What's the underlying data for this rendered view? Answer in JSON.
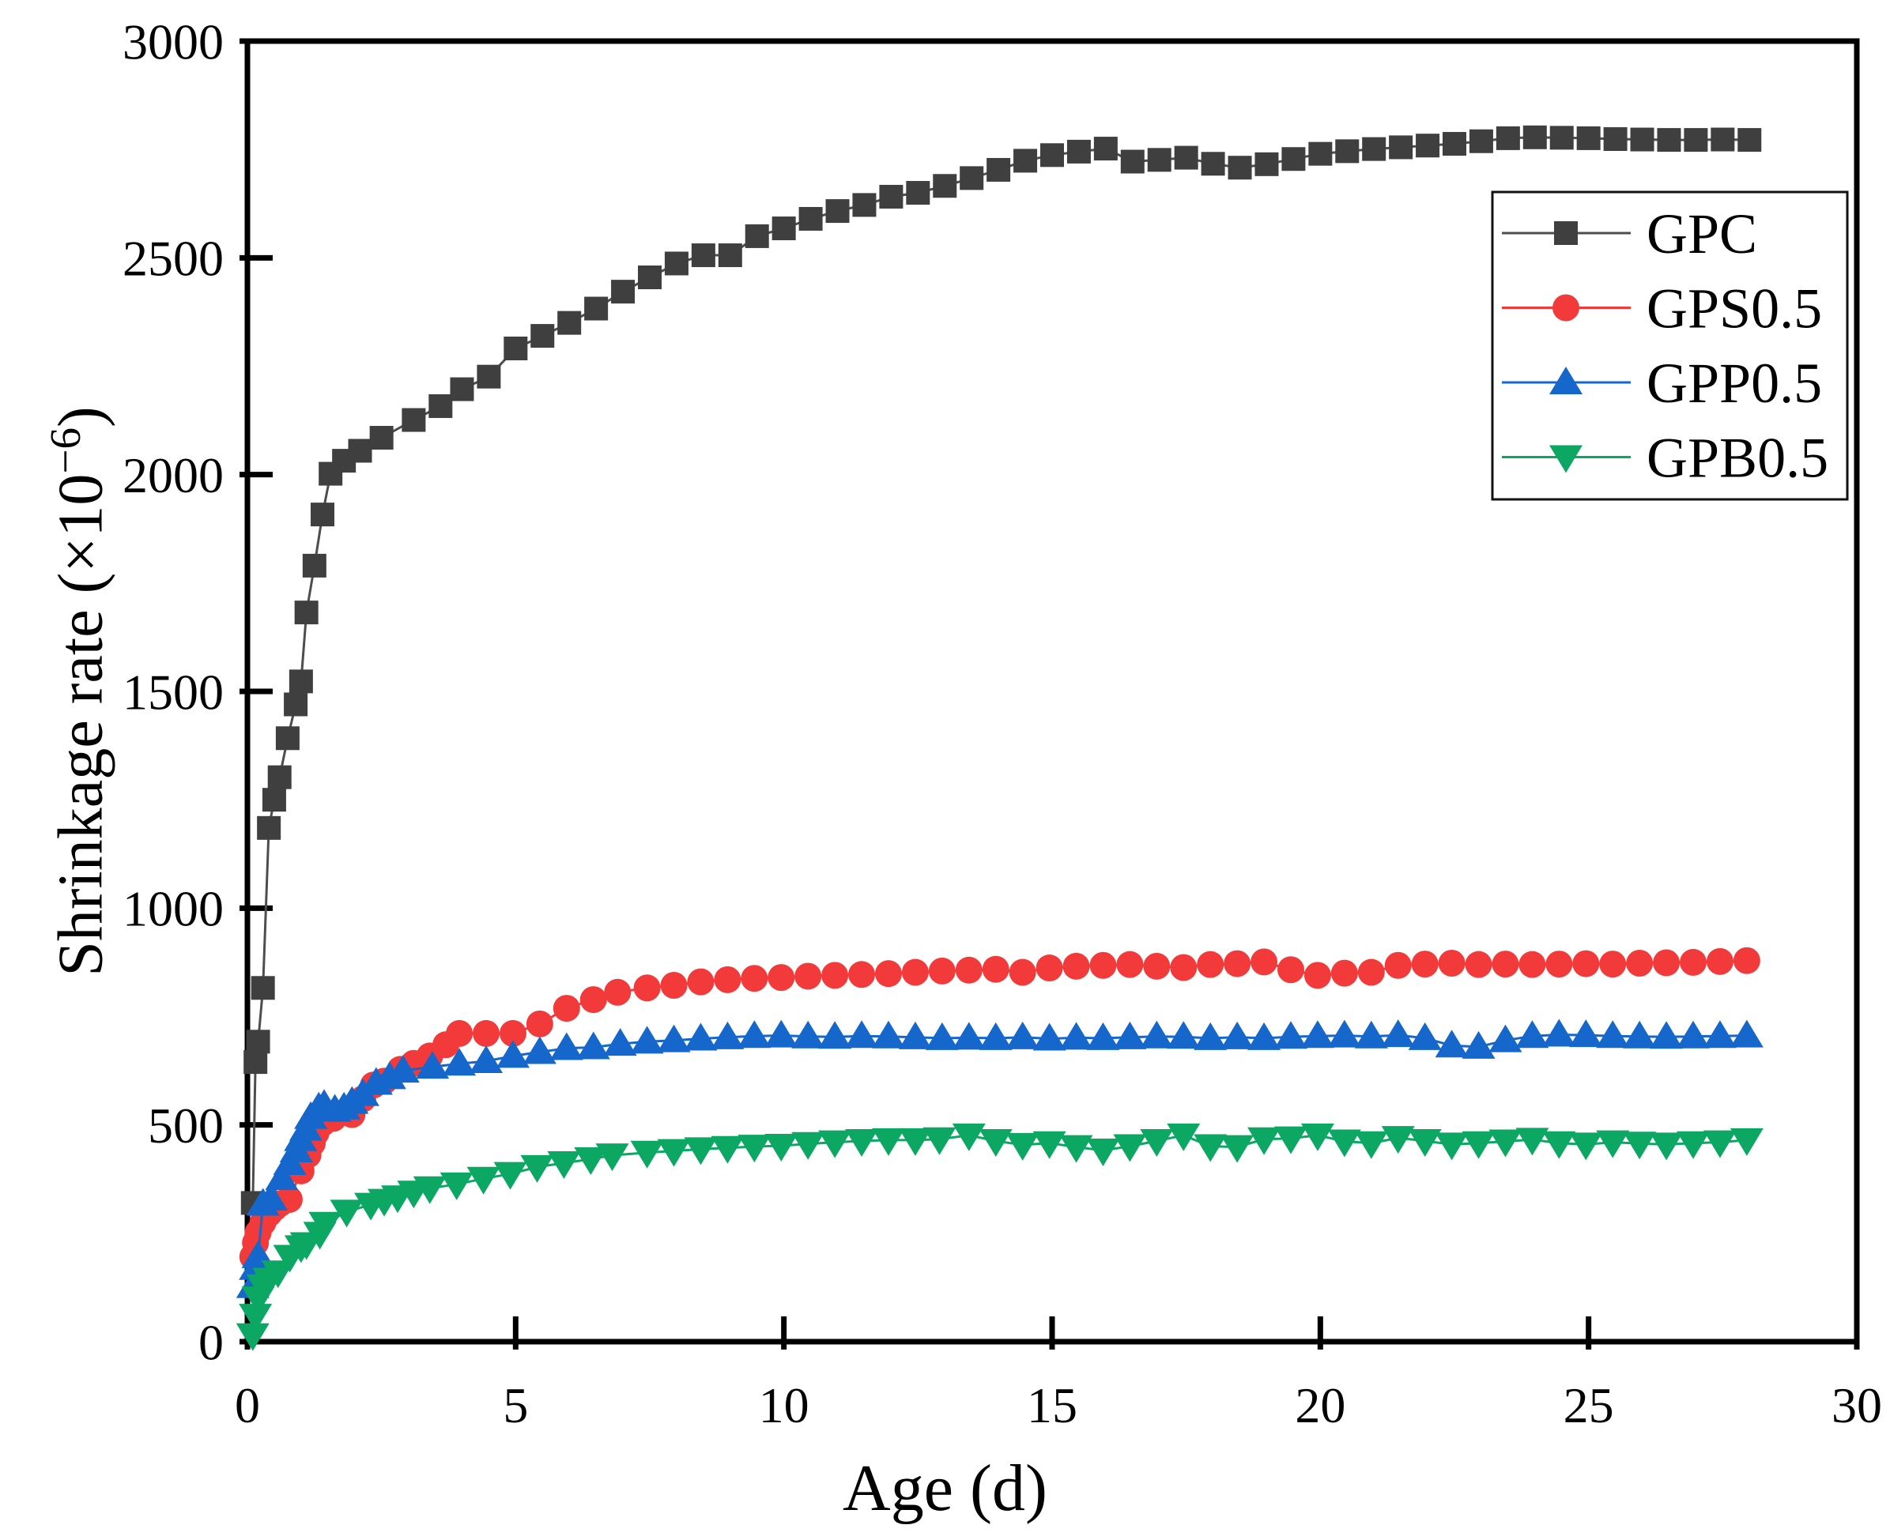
{
  "chart_data": {
    "type": "line",
    "title": "",
    "xlabel": "Age (d)",
    "ylabel_prefix": "Shrinkage rate (×10",
    "ylabel_sup": "−6",
    "ylabel_suffix": ")",
    "xlim": [
      0,
      30
    ],
    "ylim": [
      0,
      3000
    ],
    "xticks": [
      0,
      5,
      10,
      15,
      20,
      25,
      30
    ],
    "yticks": [
      0,
      500,
      1000,
      1500,
      2000,
      2500,
      3000
    ],
    "grid": false,
    "legend_position": "upper right",
    "series": [
      {
        "name": "GPC",
        "marker": "square",
        "color": "#3f3f3f",
        "line_color": "#4d4d4d",
        "points": [
          [
            0.1,
            320
          ],
          [
            0.15,
            645
          ],
          [
            0.2,
            692
          ],
          [
            0.29,
            816
          ],
          [
            0.4,
            1185
          ],
          [
            0.5,
            1250
          ],
          [
            0.6,
            1302
          ],
          [
            0.75,
            1392
          ],
          [
            0.9,
            1470
          ],
          [
            1.0,
            1523
          ],
          [
            1.1,
            1682
          ],
          [
            1.25,
            1790
          ],
          [
            1.4,
            1908
          ],
          [
            1.55,
            2002
          ],
          [
            1.8,
            2032
          ],
          [
            2.1,
            2055
          ],
          [
            2.5,
            2085
          ],
          [
            3.1,
            2126
          ],
          [
            3.6,
            2158
          ],
          [
            4.0,
            2197
          ],
          [
            4.5,
            2226
          ],
          [
            5.0,
            2291
          ],
          [
            5.5,
            2320
          ],
          [
            6.0,
            2350
          ],
          [
            6.5,
            2383
          ],
          [
            7.0,
            2422
          ],
          [
            7.5,
            2455
          ],
          [
            8.0,
            2487
          ],
          [
            8.5,
            2506
          ],
          [
            9.0,
            2506
          ],
          [
            9.5,
            2550
          ],
          [
            10.0,
            2568
          ],
          [
            10.5,
            2590
          ],
          [
            11.0,
            2608
          ],
          [
            11.5,
            2622
          ],
          [
            12.0,
            2641
          ],
          [
            12.5,
            2650
          ],
          [
            13.0,
            2666
          ],
          [
            13.5,
            2684
          ],
          [
            14.0,
            2703
          ],
          [
            14.5,
            2724
          ],
          [
            15.0,
            2737
          ],
          [
            15.5,
            2745
          ],
          [
            16.0,
            2752
          ],
          [
            16.5,
            2722
          ],
          [
            17.0,
            2726
          ],
          [
            17.5,
            2731
          ],
          [
            18.0,
            2717
          ],
          [
            18.5,
            2708
          ],
          [
            19.0,
            2716
          ],
          [
            19.5,
            2728
          ],
          [
            20.0,
            2740
          ],
          [
            20.5,
            2746
          ],
          [
            21.0,
            2751
          ],
          [
            21.5,
            2755
          ],
          [
            22.0,
            2759
          ],
          [
            22.5,
            2763
          ],
          [
            23.0,
            2769
          ],
          [
            23.5,
            2776
          ],
          [
            24.0,
            2778
          ],
          [
            24.5,
            2777
          ],
          [
            25.0,
            2776
          ],
          [
            25.5,
            2774
          ],
          [
            26.0,
            2773
          ],
          [
            26.5,
            2772
          ],
          [
            27.0,
            2772
          ],
          [
            27.5,
            2773
          ],
          [
            28.0,
            2772
          ]
        ]
      },
      {
        "name": "GPS0.5",
        "marker": "circle",
        "color": "#f23a3a",
        "line_color": "#f23a3a",
        "points": [
          [
            0.1,
            196
          ],
          [
            0.15,
            228
          ],
          [
            0.2,
            252
          ],
          [
            0.29,
            275
          ],
          [
            0.4,
            295
          ],
          [
            0.5,
            308
          ],
          [
            0.6,
            318
          ],
          [
            0.78,
            328
          ],
          [
            1.0,
            394
          ],
          [
            1.13,
            431
          ],
          [
            1.21,
            458
          ],
          [
            1.28,
            482
          ],
          [
            1.4,
            504
          ],
          [
            1.6,
            515
          ],
          [
            1.95,
            524
          ],
          [
            2.15,
            560
          ],
          [
            2.35,
            592
          ],
          [
            2.55,
            601
          ],
          [
            2.85,
            628
          ],
          [
            3.1,
            642
          ],
          [
            3.4,
            659
          ],
          [
            3.7,
            685
          ],
          [
            3.95,
            711
          ],
          [
            4.45,
            711
          ],
          [
            4.95,
            711
          ],
          [
            5.45,
            733
          ],
          [
            5.95,
            769
          ],
          [
            6.45,
            789
          ],
          [
            6.9,
            806
          ],
          [
            7.45,
            816
          ],
          [
            7.95,
            822
          ],
          [
            8.45,
            830
          ],
          [
            8.95,
            835
          ],
          [
            9.45,
            838
          ],
          [
            9.95,
            840
          ],
          [
            10.45,
            843
          ],
          [
            10.95,
            845
          ],
          [
            11.45,
            847
          ],
          [
            11.95,
            849
          ],
          [
            12.45,
            852
          ],
          [
            12.95,
            855
          ],
          [
            13.45,
            857
          ],
          [
            13.95,
            859
          ],
          [
            14.45,
            852
          ],
          [
            14.95,
            862
          ],
          [
            15.45,
            866
          ],
          [
            15.95,
            868
          ],
          [
            16.45,
            870
          ],
          [
            16.95,
            866
          ],
          [
            17.45,
            863
          ],
          [
            17.95,
            870
          ],
          [
            18.45,
            872
          ],
          [
            18.95,
            876
          ],
          [
            19.45,
            858
          ],
          [
            19.95,
            845
          ],
          [
            20.45,
            850
          ],
          [
            20.95,
            852
          ],
          [
            21.45,
            868
          ],
          [
            21.95,
            871
          ],
          [
            22.45,
            873
          ],
          [
            22.95,
            870
          ],
          [
            23.45,
            871
          ],
          [
            23.95,
            870
          ],
          [
            24.45,
            871
          ],
          [
            24.95,
            872
          ],
          [
            25.45,
            871
          ],
          [
            25.95,
            873
          ],
          [
            26.45,
            874
          ],
          [
            26.95,
            875
          ],
          [
            27.45,
            877
          ],
          [
            27.95,
            879
          ]
        ]
      },
      {
        "name": "GPP0.5",
        "marker": "triangle-up",
        "color": "#1667cc",
        "line_color": "#1667cc",
        "points": [
          [
            0.1,
            128
          ],
          [
            0.15,
            170
          ],
          [
            0.2,
            197
          ],
          [
            0.29,
            318
          ],
          [
            0.44,
            330
          ],
          [
            0.64,
            377
          ],
          [
            0.79,
            412
          ],
          [
            0.91,
            441
          ],
          [
            0.99,
            467
          ],
          [
            1.09,
            491
          ],
          [
            1.18,
            518
          ],
          [
            1.33,
            540
          ],
          [
            1.43,
            546
          ],
          [
            1.63,
            535
          ],
          [
            1.8,
            540
          ],
          [
            1.95,
            553
          ],
          [
            2.15,
            571
          ],
          [
            2.4,
            597
          ],
          [
            2.65,
            610
          ],
          [
            2.9,
            625
          ],
          [
            3.45,
            634
          ],
          [
            3.95,
            641
          ],
          [
            4.45,
            647
          ],
          [
            4.95,
            659
          ],
          [
            5.45,
            668
          ],
          [
            5.95,
            677
          ],
          [
            6.45,
            679
          ],
          [
            6.95,
            687
          ],
          [
            7.45,
            692
          ],
          [
            7.95,
            695
          ],
          [
            8.45,
            699
          ],
          [
            8.95,
            702
          ],
          [
            9.45,
            705
          ],
          [
            9.95,
            706
          ],
          [
            10.45,
            704
          ],
          [
            10.95,
            703
          ],
          [
            11.45,
            705
          ],
          [
            11.95,
            704
          ],
          [
            12.45,
            702
          ],
          [
            12.95,
            700
          ],
          [
            13.45,
            701
          ],
          [
            13.95,
            700
          ],
          [
            14.45,
            702
          ],
          [
            14.95,
            699
          ],
          [
            15.45,
            701
          ],
          [
            15.95,
            700
          ],
          [
            16.45,
            702
          ],
          [
            16.95,
            704
          ],
          [
            17.45,
            703
          ],
          [
            17.95,
            700
          ],
          [
            18.45,
            702
          ],
          [
            18.95,
            700
          ],
          [
            19.45,
            703
          ],
          [
            19.95,
            705
          ],
          [
            20.45,
            706
          ],
          [
            20.95,
            704
          ],
          [
            21.45,
            707
          ],
          [
            21.95,
            700
          ],
          [
            22.45,
            683
          ],
          [
            22.95,
            680
          ],
          [
            23.45,
            695
          ],
          [
            23.95,
            705
          ],
          [
            24.45,
            708
          ],
          [
            24.95,
            707
          ],
          [
            25.45,
            705
          ],
          [
            25.95,
            704
          ],
          [
            26.45,
            703
          ],
          [
            26.95,
            704
          ],
          [
            27.45,
            705
          ],
          [
            27.95,
            706
          ]
        ]
      },
      {
        "name": "GPB0.5",
        "marker": "triangle-down",
        "color": "#0ba763",
        "line_color": "#0ba763",
        "points": [
          [
            0.1,
            15
          ],
          [
            0.15,
            60
          ],
          [
            0.2,
            100
          ],
          [
            0.29,
            128
          ],
          [
            0.4,
            143
          ],
          [
            0.57,
            160
          ],
          [
            0.79,
            196
          ],
          [
            1.0,
            218
          ],
          [
            1.1,
            225
          ],
          [
            1.35,
            249
          ],
          [
            1.45,
            272
          ],
          [
            1.85,
            300
          ],
          [
            2.3,
            316
          ],
          [
            2.55,
            325
          ],
          [
            2.8,
            333
          ],
          [
            3.1,
            344
          ],
          [
            3.4,
            354
          ],
          [
            3.9,
            363
          ],
          [
            4.4,
            376
          ],
          [
            4.9,
            387
          ],
          [
            5.4,
            403
          ],
          [
            5.9,
            412
          ],
          [
            6.4,
            421
          ],
          [
            6.8,
            430
          ],
          [
            7.45,
            436
          ],
          [
            7.95,
            440
          ],
          [
            8.45,
            444
          ],
          [
            8.95,
            447
          ],
          [
            9.45,
            450
          ],
          [
            9.95,
            452
          ],
          [
            10.45,
            456
          ],
          [
            10.95,
            460
          ],
          [
            11.45,
            463
          ],
          [
            11.95,
            465
          ],
          [
            12.45,
            465
          ],
          [
            12.9,
            467
          ],
          [
            13.45,
            476
          ],
          [
            13.95,
            463
          ],
          [
            14.45,
            454
          ],
          [
            14.95,
            458
          ],
          [
            15.45,
            449
          ],
          [
            15.95,
            441
          ],
          [
            16.45,
            451
          ],
          [
            16.95,
            463
          ],
          [
            17.45,
            476
          ],
          [
            17.95,
            451
          ],
          [
            18.45,
            449
          ],
          [
            18.95,
            467
          ],
          [
            19.45,
            469
          ],
          [
            19.95,
            476
          ],
          [
            20.45,
            462
          ],
          [
            20.95,
            458
          ],
          [
            21.45,
            470
          ],
          [
            21.95,
            463
          ],
          [
            22.45,
            455
          ],
          [
            22.95,
            458
          ],
          [
            23.45,
            462
          ],
          [
            23.95,
            466
          ],
          [
            24.45,
            458
          ],
          [
            24.95,
            455
          ],
          [
            25.45,
            460
          ],
          [
            25.95,
            457
          ],
          [
            26.45,
            455
          ],
          [
            26.95,
            458
          ],
          [
            27.45,
            460
          ],
          [
            27.95,
            465
          ]
        ]
      }
    ]
  }
}
